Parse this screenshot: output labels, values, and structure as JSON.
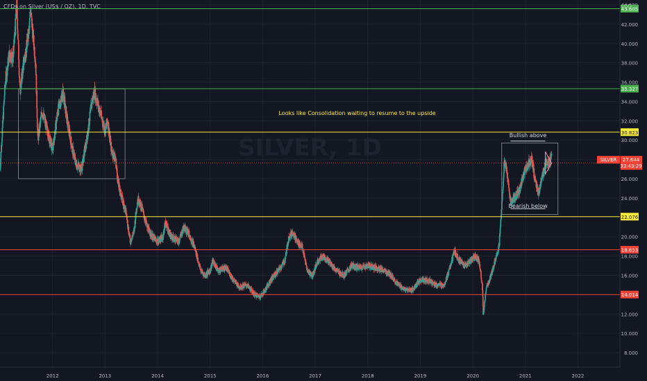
{
  "header": {
    "title": "CFDs on Silver (US$ / OZ), 1D, TVC",
    "currency": "USD"
  },
  "chart_data": {
    "type": "candlestick",
    "ylim": [
      6.5,
      44.5
    ],
    "y_ticks": [
      8,
      10,
      12,
      14,
      16,
      18,
      20,
      22,
      24,
      26,
      28,
      30,
      32,
      34,
      36,
      38,
      40,
      42,
      44
    ],
    "y_tick_labels": [
      "8.000",
      "10.000",
      "12.000",
      "14.000",
      "16.000",
      "18.000",
      "20.000",
      "22.000",
      "24.000",
      "26.000",
      "28.000",
      "30.000",
      "32.000",
      "34.000",
      "36.000",
      "38.000",
      "40.000",
      "42.000",
      "44.000"
    ],
    "xlim": [
      2011.0,
      2022.8
    ],
    "x_ticks": [
      2012,
      2013,
      2014,
      2015,
      2016,
      2017,
      2018,
      2019,
      2020,
      2021,
      2022
    ],
    "x_tick_labels": [
      "2012",
      "2013",
      "2014",
      "2015",
      "2016",
      "2017",
      "2018",
      "2019",
      "2020",
      "2021",
      "2022"
    ],
    "price_path": [
      [
        2011.0,
        27.0
      ],
      [
        2011.1,
        36.0
      ],
      [
        2011.18,
        39.0
      ],
      [
        2011.25,
        38.5
      ],
      [
        2011.32,
        44.0
      ],
      [
        2011.38,
        35.0
      ],
      [
        2011.45,
        38.0
      ],
      [
        2011.52,
        40.0
      ],
      [
        2011.58,
        43.5
      ],
      [
        2011.68,
        38.0
      ],
      [
        2011.72,
        30.0
      ],
      [
        2011.8,
        33.0
      ],
      [
        2011.9,
        31.0
      ],
      [
        2012.0,
        29.0
      ],
      [
        2012.1,
        33.0
      ],
      [
        2012.2,
        35.0
      ],
      [
        2012.28,
        32.0
      ],
      [
        2012.38,
        29.0
      ],
      [
        2012.45,
        27.5
      ],
      [
        2012.55,
        27.0
      ],
      [
        2012.65,
        30.0
      ],
      [
        2012.75,
        34.0
      ],
      [
        2012.8,
        35.0
      ],
      [
        2012.9,
        33.0
      ],
      [
        2013.0,
        31.0
      ],
      [
        2013.05,
        32.0
      ],
      [
        2013.12,
        29.0
      ],
      [
        2013.2,
        28.0
      ],
      [
        2013.25,
        25.5
      ],
      [
        2013.32,
        24.0
      ],
      [
        2013.4,
        22.5
      ],
      [
        2013.48,
        19.5
      ],
      [
        2013.55,
        20.5
      ],
      [
        2013.62,
        24.0
      ],
      [
        2013.7,
        23.0
      ],
      [
        2013.8,
        21.0
      ],
      [
        2013.9,
        20.0
      ],
      [
        2014.0,
        19.5
      ],
      [
        2014.1,
        20.0
      ],
      [
        2014.15,
        21.5
      ],
      [
        2014.25,
        20.0
      ],
      [
        2014.4,
        19.5
      ],
      [
        2014.5,
        21.0
      ],
      [
        2014.58,
        20.5
      ],
      [
        2014.7,
        19.0
      ],
      [
        2014.82,
        16.5
      ],
      [
        2014.9,
        16.0
      ],
      [
        2015.0,
        16.5
      ],
      [
        2015.05,
        17.5
      ],
      [
        2015.15,
        16.5
      ],
      [
        2015.3,
        16.8
      ],
      [
        2015.45,
        15.5
      ],
      [
        2015.55,
        14.8
      ],
      [
        2015.7,
        15.0
      ],
      [
        2015.85,
        14.0
      ],
      [
        2015.95,
        13.8
      ],
      [
        2016.05,
        14.5
      ],
      [
        2016.15,
        15.5
      ],
      [
        2016.3,
        16.5
      ],
      [
        2016.42,
        17.5
      ],
      [
        2016.5,
        20.0
      ],
      [
        2016.58,
        20.5
      ],
      [
        2016.65,
        19.5
      ],
      [
        2016.75,
        19.0
      ],
      [
        2016.85,
        16.5
      ],
      [
        2016.95,
        16.0
      ],
      [
        2017.05,
        17.5
      ],
      [
        2017.15,
        18.0
      ],
      [
        2017.25,
        17.5
      ],
      [
        2017.4,
        16.5
      ],
      [
        2017.55,
        16.0
      ],
      [
        2017.7,
        17.0
      ],
      [
        2017.85,
        16.8
      ],
      [
        2018.0,
        17.0
      ],
      [
        2018.15,
        16.8
      ],
      [
        2018.3,
        16.5
      ],
      [
        2018.45,
        16.0
      ],
      [
        2018.55,
        15.2
      ],
      [
        2018.7,
        14.5
      ],
      [
        2018.85,
        14.5
      ],
      [
        2019.0,
        15.5
      ],
      [
        2019.15,
        15.5
      ],
      [
        2019.3,
        15.0
      ],
      [
        2019.45,
        15.0
      ],
      [
        2019.55,
        16.5
      ],
      [
        2019.65,
        18.5
      ],
      [
        2019.75,
        17.5
      ],
      [
        2019.85,
        17.0
      ],
      [
        2019.95,
        17.5
      ],
      [
        2020.05,
        18.0
      ],
      [
        2020.12,
        17.5
      ],
      [
        2020.18,
        15.0
      ],
      [
        2020.2,
        11.8
      ],
      [
        2020.25,
        14.5
      ],
      [
        2020.35,
        16.0
      ],
      [
        2020.42,
        17.5
      ],
      [
        2020.5,
        19.0
      ],
      [
        2020.55,
        23.0
      ],
      [
        2020.6,
        28.0
      ],
      [
        2020.65,
        26.5
      ],
      [
        2020.72,
        23.5
      ],
      [
        2020.8,
        24.0
      ],
      [
        2020.9,
        25.0
      ],
      [
        2020.97,
        26.5
      ],
      [
        2021.05,
        27.5
      ],
      [
        2021.12,
        28.0
      ],
      [
        2021.18,
        26.0
      ],
      [
        2021.25,
        24.5
      ],
      [
        2021.32,
        26.0
      ],
      [
        2021.4,
        28.0
      ],
      [
        2021.45,
        27.5
      ],
      [
        2021.5,
        28.2
      ]
    ],
    "horizontal_levels": [
      {
        "value": 43.605,
        "label": "43.605",
        "color": "#4caf50"
      },
      {
        "value": 35.327,
        "label": "35.327",
        "color": "#4caf50"
      },
      {
        "value": 30.823,
        "label": "30.823",
        "color": "#ffeb3b"
      },
      {
        "value": 22.076,
        "label": "22.076",
        "color": "#ffeb3b"
      },
      {
        "value": 18.653,
        "label": "18.653",
        "color": "#f44336"
      },
      {
        "value": 14.014,
        "label": "14.014",
        "color": "#f44336"
      }
    ],
    "current_price": {
      "value": 27.644,
      "symbol": "SILVER",
      "label": "27.644",
      "countdown": "33:43:29",
      "color": "#f44336"
    },
    "consolidation_box_2012": {
      "x0": 2011.35,
      "x1": 2013.38,
      "y0": 26.0,
      "y1": 35.3
    },
    "consolidation_box_2020": {
      "x0": 2020.55,
      "x1": 2021.62,
      "y0": 22.3,
      "y1": 29.7
    },
    "bullish_line": {
      "x0": 2020.72,
      "x1": 2021.38,
      "y": 29.9
    },
    "bearish_line": {
      "x0": 2020.72,
      "x1": 2021.38,
      "y": 22.9
    },
    "triangle": {
      "points": [
        [
          2021.38,
          28.8
        ],
        [
          2021.5,
          27.6
        ],
        [
          2021.38,
          26.5
        ]
      ]
    },
    "annotations": [
      {
        "text": "Looks like Consolidation waiting to resume to the upside",
        "x": 2017.8,
        "y": 32.6,
        "color": "#ffeb3b"
      },
      {
        "text": "Bullish above",
        "x": 2021.05,
        "y": 30.3,
        "color": "#d1d4dc"
      },
      {
        "text": "Bearish below",
        "x": 2021.05,
        "y": 23.0,
        "color": "#d1d4dc"
      }
    ],
    "watermark": "SILVER, 1D",
    "colors": {
      "up": "#26a69a",
      "down": "#ef5350",
      "grid": "#1e222d",
      "axis_text": "#b2b5be",
      "bg": "#131722"
    }
  }
}
